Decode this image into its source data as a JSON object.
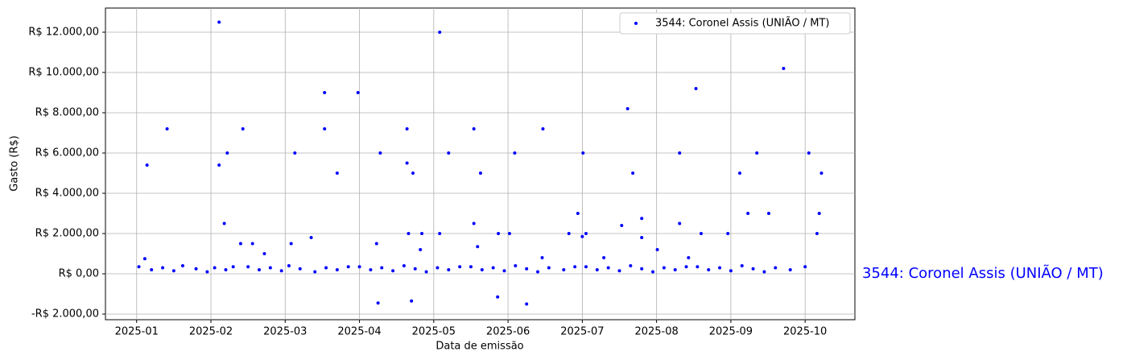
{
  "chart_data": {
    "type": "scatter",
    "xlabel": "Data de emissão",
    "ylabel": "Gasto (R$)",
    "annotation": "3544: Coronel Assis (UNIÃO / MT)",
    "legend": "upper right",
    "grid": true,
    "xlim": [
      -0.42,
      9.67
    ],
    "ylim": [
      -2280,
      13200
    ],
    "xticks": [
      {
        "value": 0,
        "label": "2025-01"
      },
      {
        "value": 1,
        "label": "2025-02"
      },
      {
        "value": 2,
        "label": "2025-03"
      },
      {
        "value": 3,
        "label": "2025-04"
      },
      {
        "value": 4,
        "label": "2025-05"
      },
      {
        "value": 5,
        "label": "2025-06"
      },
      {
        "value": 6,
        "label": "2025-07"
      },
      {
        "value": 7,
        "label": "2025-08"
      },
      {
        "value": 8,
        "label": "2025-09"
      },
      {
        "value": 9,
        "label": "2025-10"
      }
    ],
    "yticks": [
      {
        "value": -2000,
        "label": "-R$ 2.000,00"
      },
      {
        "value": 0,
        "label": "R$ 0,00"
      },
      {
        "value": 2000,
        "label": "R$ 2.000,00"
      },
      {
        "value": 4000,
        "label": "R$ 4.000,00"
      },
      {
        "value": 6000,
        "label": "R$ 6.000,00"
      },
      {
        "value": 8000,
        "label": "R$ 8.000,00"
      },
      {
        "value": 10000,
        "label": "R$ 10.000,00"
      },
      {
        "value": 12000,
        "label": "R$ 12.000,00"
      }
    ],
    "series": [
      {
        "name": "3544: Coronel Assis (UNIÃO / MT)",
        "color": "#0000ff",
        "x": [
          0.14,
          0.11,
          0.41,
          1.11,
          1.11,
          1.22,
          1.18,
          1.43,
          1.4,
          1.56,
          1.72,
          2.13,
          2.08,
          2.35,
          2.53,
          2.53,
          2.7,
          2.98,
          3.28,
          3.23,
          3.25,
          3.64,
          3.64,
          3.72,
          3.66,
          3.7,
          3.84,
          3.82,
          4.08,
          4.08,
          4.2,
          4.54,
          4.54,
          4.63,
          4.59,
          4.86,
          4.87,
          5.02,
          5.09,
          5.25,
          5.47,
          5.46,
          5.82,
          5.94,
          6.01,
          6.05,
          6.0,
          6.29,
          6.53,
          6.61,
          6.68,
          6.8,
          6.8,
          7.01,
          7.31,
          7.31,
          7.43,
          7.53,
          7.6,
          7.96,
          8.12,
          8.23,
          8.35,
          8.51,
          8.71,
          9.05,
          9.16,
          9.19,
          9.22,
          0.03,
          0.2,
          0.35,
          0.5,
          0.62,
          0.8,
          0.95,
          1.05,
          1.2,
          1.3,
          1.5,
          1.65,
          1.8,
          1.95,
          2.05,
          2.2,
          2.4,
          2.55,
          2.7,
          2.85,
          3.0,
          3.15,
          3.3,
          3.45,
          3.6,
          3.75,
          3.9,
          4.05,
          4.2,
          4.35,
          4.5,
          4.65,
          4.8,
          4.95,
          5.1,
          5.25,
          5.4,
          5.55,
          5.75,
          5.9,
          6.05,
          6.2,
          6.35,
          6.5,
          6.65,
          6.8,
          6.95,
          7.1,
          7.25,
          7.4,
          7.55,
          7.7,
          7.85,
          8.0,
          8.15,
          8.3,
          8.45,
          8.6,
          8.8,
          9.0
        ],
        "values": [
          5400,
          750,
          7200,
          12500,
          5400,
          6000,
          2500,
          7200,
          1500,
          1500,
          1000,
          6000,
          1500,
          1800,
          9000,
          7200,
          5000,
          9000,
          6000,
          1500,
          -1450,
          7200,
          5500,
          5000,
          2000,
          -1350,
          2000,
          1200,
          12000,
          2000,
          6000,
          7200,
          2500,
          5000,
          1350,
          -1150,
          2000,
          2000,
          6000,
          -1500,
          7200,
          800,
          2000,
          3000,
          6000,
          2000,
          1850,
          800,
          2400,
          8200,
          5000,
          2750,
          1800,
          1200,
          6000,
          2500,
          800,
          9200,
          2000,
          2000,
          5000,
          3000,
          6000,
          3000,
          10200,
          6000,
          2000,
          3000,
          5000,
          350,
          200,
          300,
          150,
          400,
          250,
          100,
          300,
          200,
          350,
          350,
          200,
          300,
          150,
          400,
          250,
          100,
          300,
          200,
          350,
          350,
          200,
          300,
          150,
          400,
          250,
          100,
          300,
          200,
          350,
          350,
          200,
          300,
          150,
          400,
          250,
          100,
          300,
          200,
          350,
          350,
          200,
          300,
          150,
          400,
          250,
          100,
          300,
          200,
          350,
          350,
          200,
          300,
          150,
          400,
          250,
          100,
          300,
          200,
          350
        ]
      }
    ]
  }
}
